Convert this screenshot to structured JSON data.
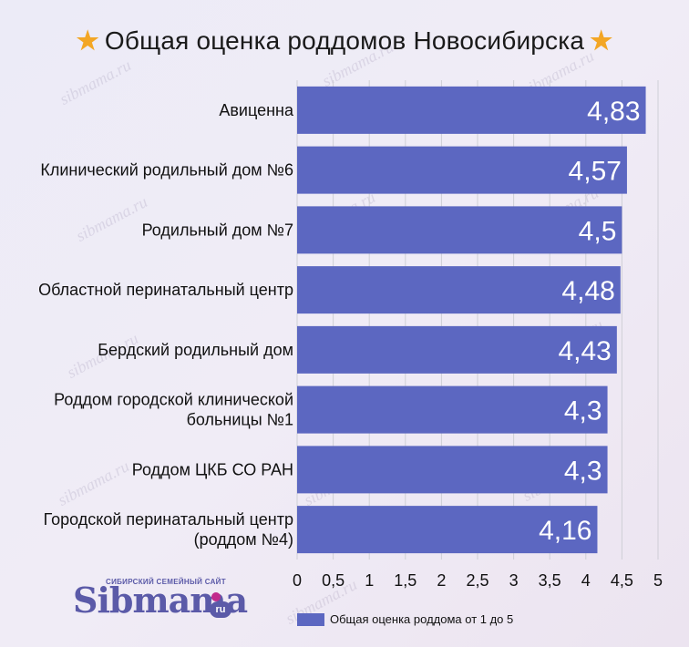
{
  "title": {
    "text": "Общая оценка роддомов Новосибирска",
    "star_icon": "star-icon"
  },
  "watermark_text": "sibmama.ru",
  "logo": {
    "tagline": "СИБИРСКИЙ СЕМЕЙНЫЙ САЙТ",
    "word": "Sibmama",
    "suffix": "ru"
  },
  "legend": {
    "label": "Общая оценка роддома от 1 до 5",
    "position": "bottom"
  },
  "colors": {
    "bar": "#5c67c1",
    "star": "#f3a625",
    "gridline": "#cfcfd6"
  },
  "chart_data": {
    "type": "bar",
    "orientation": "horizontal",
    "categories": [
      [
        "Авиценна"
      ],
      [
        "Клинический родильный дом №6"
      ],
      [
        "Родильный дом №7"
      ],
      [
        "Областной перинатальный центр"
      ],
      [
        "Бердский родильный дом"
      ],
      [
        "Роддом городской клинической",
        "больницы №1"
      ],
      [
        "Роддом ЦКБ СО РАН"
      ],
      [
        "Городской перинатальный центр",
        "(роддом №4)"
      ]
    ],
    "series": [
      {
        "name": "Общая оценка роддома от 1 до 5",
        "values": [
          4.83,
          4.57,
          4.5,
          4.48,
          4.43,
          4.3,
          4.3,
          4.16
        ],
        "value_labels": [
          "4,83",
          "4,57",
          "4,5",
          "4,48",
          "4,43",
          "4,3",
          "4,3",
          "4,16"
        ]
      }
    ],
    "xlim": [
      0,
      5
    ],
    "x_ticks": [
      0,
      0.5,
      1,
      1.5,
      2,
      2.5,
      3,
      3.5,
      4,
      4.5,
      5
    ],
    "x_tick_labels": [
      "0",
      "0,5",
      "1",
      "1,5",
      "2",
      "2,5",
      "3",
      "3,5",
      "4",
      "4,5",
      "5"
    ],
    "grid": "vertical",
    "xlabel": "",
    "ylabel": ""
  }
}
